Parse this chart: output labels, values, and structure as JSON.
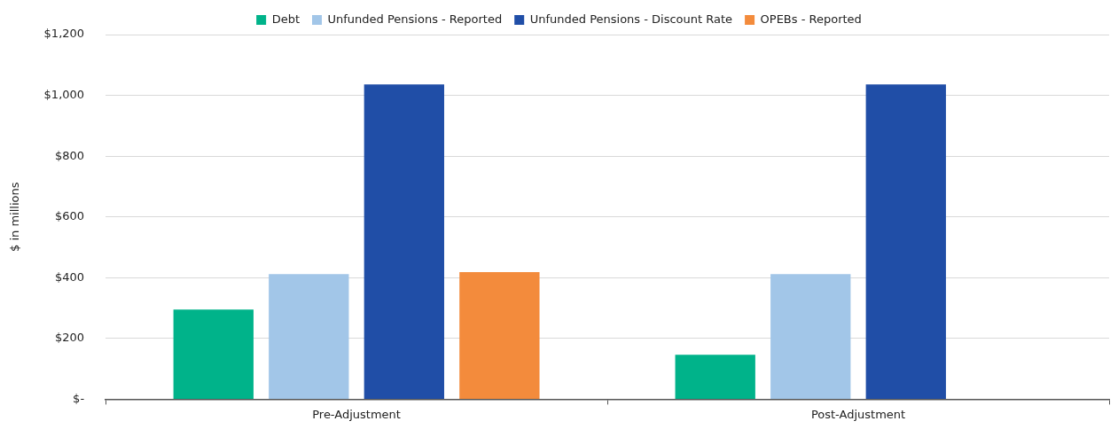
{
  "chart_data": {
    "type": "bar",
    "ylabel": "$ in millions",
    "categories": [
      "Pre-Adjustment",
      "Post-Adjustment"
    ],
    "series": [
      {
        "name": "Debt",
        "color": "#00b38a",
        "values": [
          295,
          146
        ]
      },
      {
        "name": "Unfunded Pensions - Reported",
        "color": "#a2c6e8",
        "values": [
          412,
          412
        ]
      },
      {
        "name": "Unfunded Pensions - Discount Rate",
        "color": "#204ea7",
        "values": [
          1036,
          1036
        ]
      },
      {
        "name": "OPEBs - Reported",
        "color": "#f38b3c",
        "values": [
          418,
          null
        ]
      }
    ],
    "ylim": [
      0,
      1200
    ],
    "yticks": [
      {
        "value": 0,
        "label": "$-"
      },
      {
        "value": 200,
        "label": "$200"
      },
      {
        "value": 400,
        "label": "$400"
      },
      {
        "value": 600,
        "label": "$600"
      },
      {
        "value": 800,
        "label": "$800"
      },
      {
        "value": 1000,
        "label": "$1,000"
      },
      {
        "value": 1200,
        "label": "$1,200"
      }
    ],
    "grid": "y",
    "legend": "top"
  }
}
